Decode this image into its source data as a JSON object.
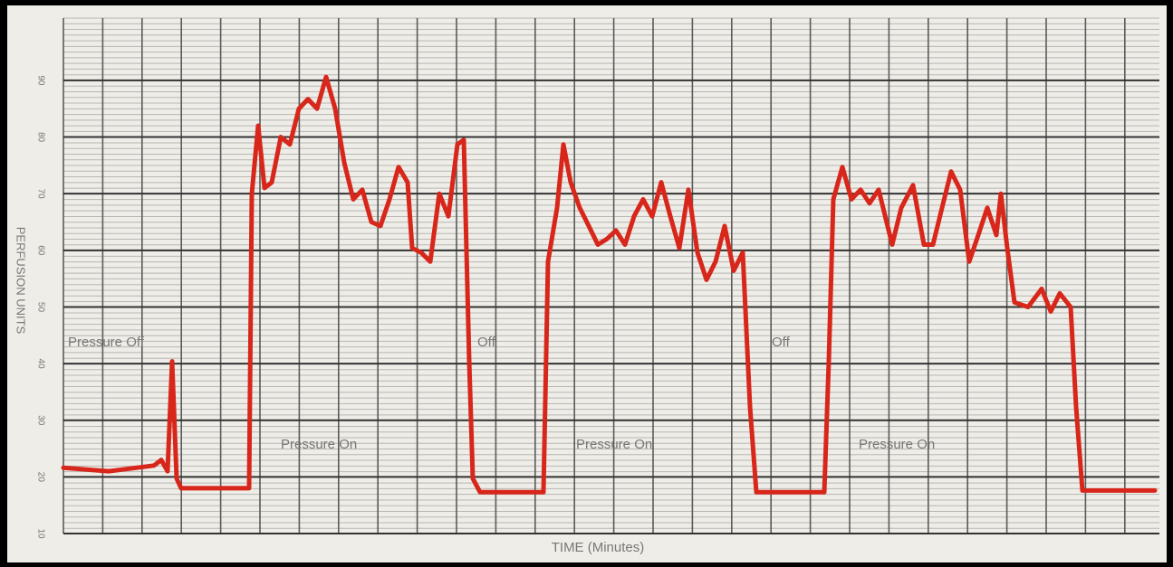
{
  "chart_data": {
    "type": "line",
    "ylabel": "PERFUSION UNITS",
    "xlabel": "TIME (Minutes)",
    "annotations": [
      "Pressure Off",
      "Off",
      "Off",
      "Pressure On",
      "Pressure On",
      "Pressure On"
    ],
    "ylim": [
      10,
      101
    ],
    "yticks": [
      10,
      20,
      30,
      40,
      50,
      60,
      70,
      80,
      90
    ],
    "xlim": [
      0,
      121
    ],
    "grid": true,
    "color": "#d8261a",
    "x": [
      0,
      5,
      10,
      10.8,
      11.5,
      12,
      12.5,
      13,
      20.5,
      20.8,
      21.5,
      22.2,
      23,
      24,
      25,
      26,
      27,
      28,
      29,
      30,
      31,
      32,
      33,
      34,
      35,
      36,
      37,
      38,
      38.5,
      39.5,
      40.5,
      41.5,
      42.5,
      43.5,
      44.2,
      44.8,
      45.2,
      46,
      53,
      53.5,
      54.5,
      55.2,
      56,
      57,
      58,
      59,
      60,
      61,
      62,
      63,
      64,
      65,
      66,
      67,
      68,
      69,
      70,
      71,
      72,
      73,
      74,
      75,
      75.8,
      76.5,
      84,
      84.5,
      85,
      86,
      87,
      88,
      89,
      90,
      91.5,
      92.5,
      93.8,
      95,
      96,
      97,
      98,
      99,
      100,
      101,
      102,
      103,
      103.5,
      104.2,
      105,
      106.5,
      108,
      109,
      110,
      111.2,
      111.8,
      112.5,
      120.5
    ],
    "values": [
      21.6,
      21,
      22,
      23,
      21,
      40.4,
      19.7,
      18,
      18,
      70,
      82,
      71,
      72,
      80,
      78.7,
      85,
      86.7,
      85,
      90.6,
      85,
      75.5,
      69,
      70.7,
      65,
      64.3,
      69,
      74.7,
      72,
      60.4,
      59.6,
      58,
      70,
      66,
      78.7,
      79.5,
      40.4,
      19.7,
      17.3,
      17.3,
      58,
      67.5,
      78.7,
      72,
      67.5,
      64.3,
      61,
      62,
      63.5,
      61,
      66,
      69,
      66,
      72,
      66,
      60.4,
      70.7,
      59.6,
      54.8,
      58,
      64.3,
      56.4,
      59.6,
      32.4,
      17.3,
      17.3,
      40.4,
      69,
      74.7,
      69,
      70.7,
      68.3,
      70.7,
      61,
      67.5,
      71.5,
      61,
      61,
      67.5,
      73.9,
      70.7,
      58,
      62.7,
      67.5,
      62.7,
      70,
      60.4,
      50.8,
      50,
      53.2,
      49.2,
      52.4,
      50,
      32.4,
      17.6,
      17.6
    ]
  }
}
